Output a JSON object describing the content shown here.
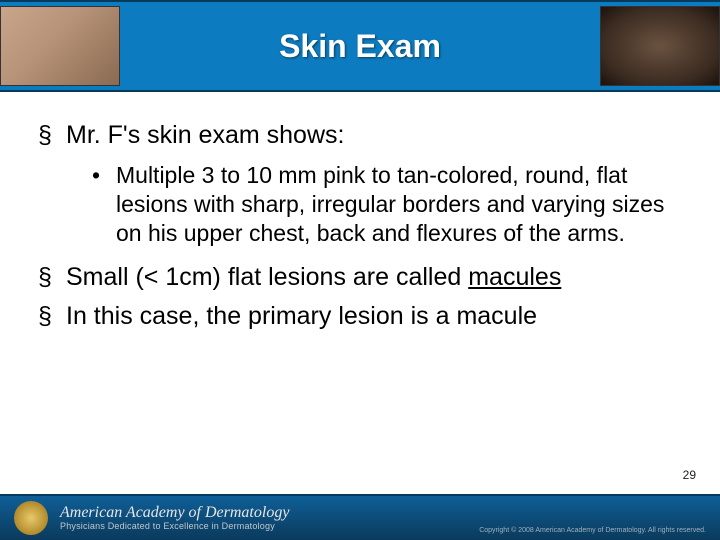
{
  "header": {
    "title": "Skin Exam",
    "bg_color": "#0d7bc0",
    "title_color": "#ffffff",
    "title_fontsize": 32
  },
  "bullets": {
    "lvl1_marker": "§",
    "lvl2_marker": "•",
    "lvl1_fontsize": 25,
    "lvl2_fontsize": 23,
    "items": [
      {
        "text": "Mr. F's skin exam shows:",
        "sub": [
          "Multiple 3 to 10 mm pink to tan-colored, round, flat lesions with sharp, irregular borders and varying sizes on his upper chest, back and flexures of the arms."
        ]
      },
      {
        "text_pre": "Small (< 1cm) flat lesions are called ",
        "text_underlined": "macules"
      },
      {
        "text": "In this case, the primary lesion is a macule"
      }
    ]
  },
  "page_number": "29",
  "footer": {
    "org": "American Academy of Dermatology",
    "tagline": "Physicians Dedicated to Excellence in Dermatology",
    "copyright": "Copyright © 2008 American Academy of Dermatology. All rights reserved.",
    "bg_gradient_top": "#0f5f97",
    "bg_gradient_bottom": "#0a3a5c"
  },
  "colors": {
    "page_bg": "#ffffff",
    "text": "#000000",
    "footer_text": "#e6e6e6"
  }
}
